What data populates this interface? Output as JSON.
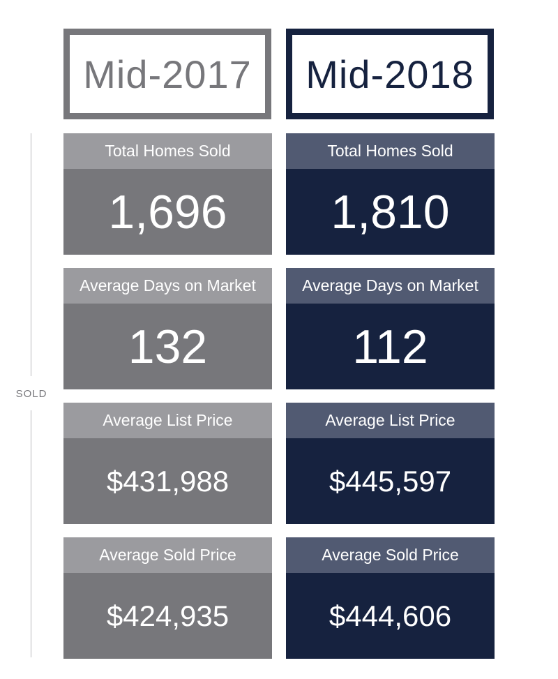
{
  "years": {
    "left": "Mid-2017",
    "right": "Mid-2018"
  },
  "side_label": "SOLD",
  "colors": {
    "gray_dark": "#77777b",
    "gray_light": "#9b9b9f",
    "navy_dark": "#16223f",
    "navy_light": "#515a72"
  },
  "stats": [
    {
      "label": "Total Homes Sold",
      "value_2017": "1,696",
      "value_2018": "1,810"
    },
    {
      "label": "Average Days on Market",
      "value_2017": "132",
      "value_2018": "112"
    },
    {
      "label": "Average List Price",
      "value_2017": "$431,988",
      "value_2018": "$445,597"
    },
    {
      "label": "Average Sold Price",
      "value_2017": "$424,935",
      "value_2018": "$444,606"
    }
  ]
}
